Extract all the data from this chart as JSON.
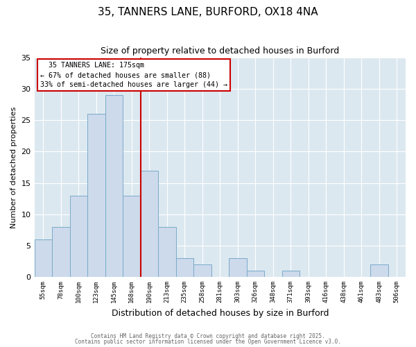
{
  "title": "35, TANNERS LANE, BURFORD, OX18 4NA",
  "subtitle": "Size of property relative to detached houses in Burford",
  "xlabel": "Distribution of detached houses by size in Burford",
  "ylabel": "Number of detached properties",
  "bar_labels": [
    "55sqm",
    "78sqm",
    "100sqm",
    "123sqm",
    "145sqm",
    "168sqm",
    "190sqm",
    "213sqm",
    "235sqm",
    "258sqm",
    "281sqm",
    "303sqm",
    "326sqm",
    "348sqm",
    "371sqm",
    "393sqm",
    "416sqm",
    "438sqm",
    "461sqm",
    "483sqm",
    "506sqm"
  ],
  "bar_values": [
    6,
    8,
    13,
    26,
    29,
    13,
    17,
    8,
    3,
    2,
    0,
    3,
    1,
    0,
    1,
    0,
    0,
    0,
    0,
    2,
    0
  ],
  "bar_color": "#ccdaeb",
  "bar_edgecolor": "#7aaaca",
  "vline_x": 5.5,
  "vline_color": "#cc0000",
  "ylim": [
    0,
    35
  ],
  "yticks": [
    0,
    5,
    10,
    15,
    20,
    25,
    30,
    35
  ],
  "annotation_title": "35 TANNERS LANE: 175sqm",
  "annotation_line1": "← 67% of detached houses are smaller (88)",
  "annotation_line2": "33% of semi-detached houses are larger (44) →",
  "annotation_box_color": "#cc0000",
  "footer_line1": "Contains HM Land Registry data © Crown copyright and database right 2025.",
  "footer_line2": "Contains public sector information licensed under the Open Government Licence v3.0.",
  "fig_bg_color": "#ffffff",
  "plot_bg_color": "#dce8f0"
}
